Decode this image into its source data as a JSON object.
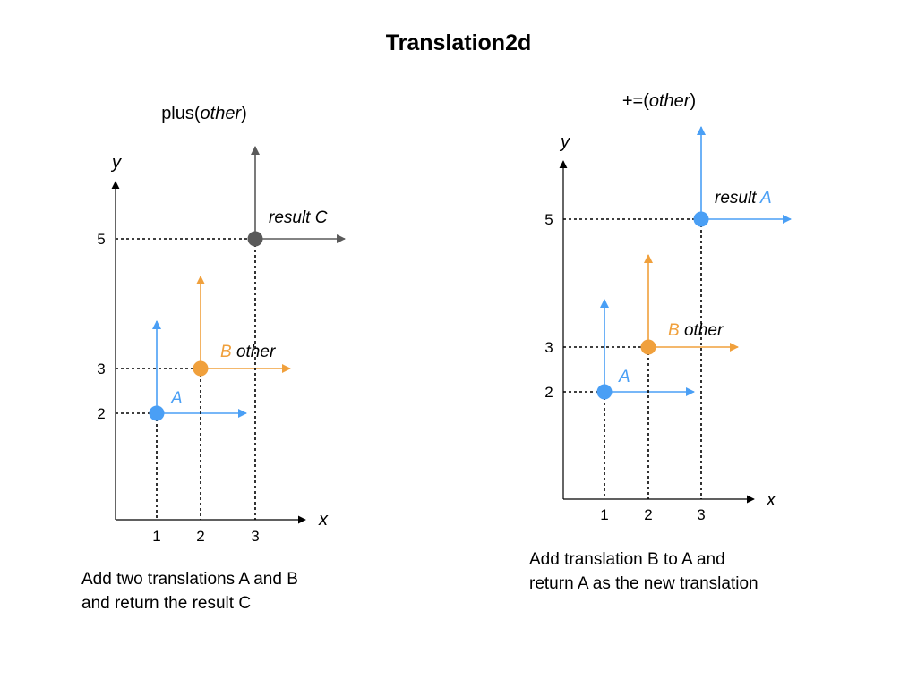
{
  "title": "Translation2d",
  "colors": {
    "A": "#4a9ff5",
    "B": "#f0a03c",
    "C": "#5a5a5a",
    "axis": "#000000"
  },
  "panels": [
    {
      "id": "plus",
      "heading": {
        "prefix": "plus(",
        "italic": "other",
        "suffix": ")"
      },
      "x_axis_label": "x",
      "y_axis_label": "y",
      "x_ticks": [
        "1",
        "2",
        "3"
      ],
      "y_ticks": [
        "2",
        "3",
        "5"
      ],
      "points": [
        {
          "key": "A",
          "x": 1,
          "y": 2,
          "color": "A",
          "label": "A",
          "label_tail": ""
        },
        {
          "key": "B",
          "x": 2,
          "y": 3,
          "color": "B",
          "label": "B",
          "label_tail": " other"
        },
        {
          "key": "C",
          "x": 3,
          "y": 5,
          "color": "C",
          "label": "result C",
          "label_tail": ""
        }
      ],
      "caption_lines": [
        "Add two translations A and B",
        "and return the result C"
      ]
    },
    {
      "id": "plus-assign",
      "heading": {
        "prefix": "+=(",
        "italic": "other",
        "suffix": ")"
      },
      "x_axis_label": "x",
      "y_axis_label": "y",
      "x_ticks": [
        "1",
        "2",
        "3"
      ],
      "y_ticks": [
        "2",
        "3",
        "5"
      ],
      "points": [
        {
          "key": "A",
          "x": 1,
          "y": 2,
          "color": "A",
          "label": "A",
          "label_tail": ""
        },
        {
          "key": "B",
          "x": 2,
          "y": 3,
          "color": "B",
          "label": "B",
          "label_tail": " other"
        },
        {
          "key": "A-result",
          "x": 3,
          "y": 5,
          "color": "A",
          "label": "result ",
          "label_tail": "A"
        }
      ],
      "caption_lines": [
        "Add translation B to A and",
        "return A as the new translation"
      ]
    }
  ]
}
